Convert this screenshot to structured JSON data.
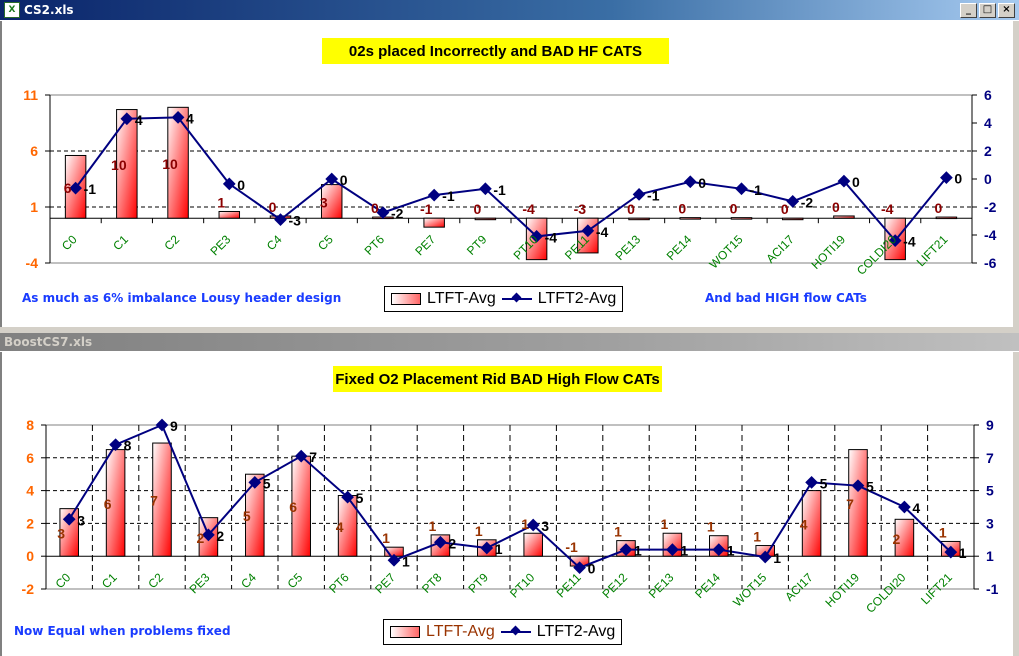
{
  "windows": [
    {
      "title": "CS2.xls",
      "active": true,
      "controls": [
        "_",
        "□",
        "×"
      ]
    },
    {
      "title": "BoostCS7.xls",
      "active": false
    }
  ],
  "colors": {
    "bar_light": "#ffffff",
    "bar_dark": "#ff0000",
    "line": "#000080",
    "left_axis": "#ff6600",
    "right_axis": "#000080",
    "category": "#008000",
    "note": "#1a3cff",
    "title_bg": "#ffff00"
  },
  "chart_data": [
    {
      "type": "bar+line",
      "title": "02s placed Incorrectly and BAD HF CATS",
      "notes": [
        "As much as 6% imbalance Lousy header design",
        "And bad HIGH flow CATs"
      ],
      "legend": [
        "LTFT-Avg",
        "LTFT2-Avg"
      ],
      "categories": [
        "C0",
        "C1",
        "C2",
        "PE3",
        "C4",
        "C5",
        "PT6",
        "PE7",
        "PT9",
        "PT10",
        "PE11",
        "PE13",
        "PE14",
        "WOT15",
        "ACI17",
        "HOTI19",
        "COLDI20",
        "LIFT21"
      ],
      "series": [
        {
          "name": "LTFT-Avg",
          "axis": "left",
          "type": "bar",
          "values": [
            5.6,
            9.7,
            9.9,
            0.6,
            0.2,
            3.0,
            0.1,
            -0.8,
            0,
            -3.7,
            -3.1,
            0,
            0.05,
            0.05,
            0,
            0.2,
            -3.7,
            0.1
          ],
          "labels": [
            "6",
            "10",
            "10",
            "1",
            "0",
            "3",
            "0",
            "-1",
            "0",
            "-4",
            "-3",
            "0",
            "0",
            "0",
            "0",
            "0",
            "-4",
            "0"
          ]
        },
        {
          "name": "LTFT2-Avg",
          "axis": "right",
          "type": "line",
          "values": [
            -0.65,
            4.3,
            4.4,
            -0.35,
            -2.9,
            0,
            -2.4,
            -1.15,
            -0.7,
            -4.1,
            -3.7,
            -1.1,
            -0.2,
            -0.7,
            -1.6,
            -0.15,
            -4.4,
            0.1
          ],
          "labels": [
            "-1",
            "4",
            "4",
            "0",
            "-3",
            "0",
            "-2",
            "-1",
            "-1",
            "-4",
            "-4",
            "-1",
            "0",
            "-1",
            "-2",
            "0",
            "-4",
            "0"
          ]
        }
      ],
      "left_axis": {
        "range": [
          -4,
          11
        ],
        "ticks": [
          "11",
          "6",
          "1",
          "-4"
        ]
      },
      "right_axis": {
        "range": [
          -6,
          6
        ],
        "ticks": [
          "6",
          "4",
          "2",
          "0",
          "-2",
          "-4",
          "-6"
        ]
      },
      "grid": "horizontal dashed at 6 and 1",
      "legend_placement": "bottom-center"
    },
    {
      "type": "bar+line",
      "title": "Fixed O2 Placement Rid BAD High Flow CATs",
      "notes": [
        "Now Equal when problems fixed"
      ],
      "legend": [
        "LTFT-Avg",
        "LTFT2-Avg"
      ],
      "categories": [
        "C0",
        "C1",
        "C2",
        "PE3",
        "C4",
        "C5",
        "PT6",
        "PE7",
        "PT8",
        "PT9",
        "PT10",
        "PE11",
        "PE12",
        "PE13",
        "PE14",
        "WOT15",
        "ACI17",
        "HOTI19",
        "COLDI20",
        "LIFT21"
      ],
      "series": [
        {
          "name": "LTFT-Avg",
          "axis": "left",
          "type": "bar",
          "values": [
            2.9,
            6.5,
            6.9,
            2.35,
            5.0,
            6.1,
            3.7,
            0.55,
            1.3,
            1.0,
            1.4,
            -0.6,
            0.95,
            1.4,
            1.25,
            0.65,
            4.0,
            6.5,
            2.25,
            0.9
          ],
          "labels": [
            "3",
            "6",
            "7",
            "2",
            "5",
            "6",
            "4",
            "1",
            "1",
            "1",
            "1",
            "-1",
            "1",
            "1",
            "1",
            "1",
            "4",
            "7",
            "2",
            "1"
          ]
        },
        {
          "name": "LTFT2-Avg",
          "axis": "right",
          "type": "line",
          "values": [
            3.25,
            7.8,
            9.0,
            2.3,
            5.5,
            7.1,
            4.6,
            0.75,
            1.85,
            1.5,
            2.9,
            0.3,
            1.4,
            1.4,
            1.4,
            0.95,
            5.5,
            5.3,
            4.0,
            1.25
          ],
          "labels": [
            "3",
            "8",
            "9",
            "2",
            "5",
            "7",
            "5",
            "1",
            "2",
            "1",
            "3",
            "0",
            "1",
            "1",
            "1",
            "1",
            "5",
            "5",
            "4",
            "1"
          ]
        }
      ],
      "left_axis": {
        "range": [
          -2,
          8
        ],
        "ticks": [
          "8",
          "6",
          "4",
          "2",
          "0",
          "-2"
        ]
      },
      "right_axis": {
        "range": [
          -1,
          9
        ],
        "ticks": [
          "9",
          "7",
          "5",
          "3",
          "1",
          "-1"
        ]
      },
      "grid": "horizontal and vertical dashed",
      "legend_placement": "bottom-center"
    }
  ]
}
